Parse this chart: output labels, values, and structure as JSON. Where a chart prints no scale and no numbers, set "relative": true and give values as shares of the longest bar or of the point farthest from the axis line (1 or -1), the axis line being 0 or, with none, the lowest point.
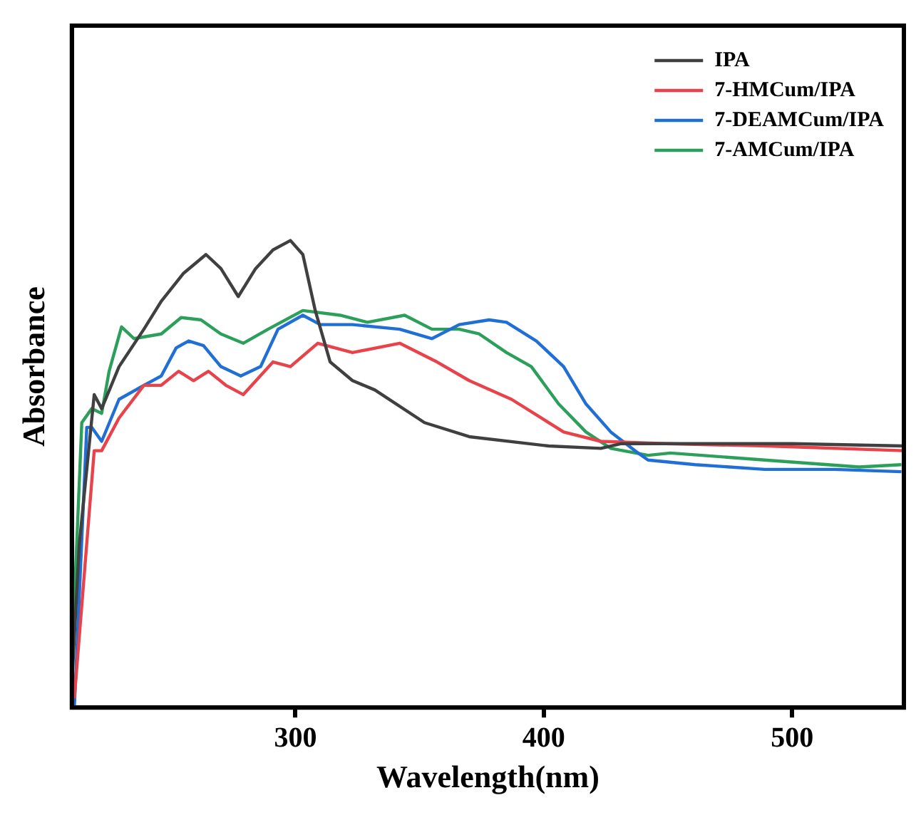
{
  "chart_data": {
    "type": "line",
    "xlabel": "Wavelength(nm)",
    "ylabel": "Absorbance",
    "relative": true,
    "xlim": [
      210,
      545
    ],
    "xticks": [
      300,
      400,
      500
    ],
    "grid": false,
    "legend": "top right",
    "marker": "none",
    "line_style": "solid",
    "series": [
      {
        "name": "IPA",
        "color": "#404040",
        "x": [
          210,
          213,
          219,
          222,
          229,
          239,
          246,
          255,
          264,
          270,
          277,
          284,
          291,
          298,
          303,
          308,
          314,
          323,
          332,
          352,
          370,
          402,
          423,
          431,
          460,
          500,
          545
        ],
        "values": [
          0.05,
          0.35,
          0.67,
          0.64,
          0.73,
          0.81,
          0.87,
          0.93,
          0.97,
          0.94,
          0.88,
          0.94,
          0.98,
          1.0,
          0.97,
          0.85,
          0.74,
          0.7,
          0.68,
          0.61,
          0.58,
          0.56,
          0.555,
          0.565,
          0.565,
          0.565,
          0.56
        ]
      },
      {
        "name": "7-HMCum/IPA",
        "color": "#e8424a",
        "x": [
          211,
          219,
          222,
          229,
          239,
          246,
          253,
          259,
          265,
          272,
          279,
          291,
          298,
          309,
          323,
          342,
          357,
          370,
          387,
          399,
          408,
          423,
          449,
          490,
          545
        ],
        "values": [
          0.02,
          0.55,
          0.55,
          0.62,
          0.69,
          0.69,
          0.72,
          0.7,
          0.72,
          0.69,
          0.67,
          0.74,
          0.73,
          0.78,
          0.76,
          0.78,
          0.74,
          0.7,
          0.66,
          0.62,
          0.59,
          0.57,
          0.565,
          0.56,
          0.55
        ]
      },
      {
        "name": "7-DEAMCum/IPA",
        "color": "#1f6fd6",
        "x": [
          211,
          216,
          218,
          222,
          229,
          239,
          246,
          252,
          257,
          263,
          270,
          278,
          286,
          293,
          303,
          310,
          323,
          342,
          355,
          366,
          378,
          385,
          397,
          408,
          417,
          427,
          438,
          442,
          461,
          489,
          517,
          544
        ],
        "values": [
          0.0,
          0.6,
          0.6,
          0.57,
          0.66,
          0.69,
          0.71,
          0.77,
          0.785,
          0.775,
          0.73,
          0.71,
          0.73,
          0.81,
          0.84,
          0.82,
          0.82,
          0.81,
          0.79,
          0.82,
          0.83,
          0.825,
          0.785,
          0.73,
          0.65,
          0.59,
          0.545,
          0.53,
          0.52,
          0.51,
          0.51,
          0.505
        ]
      },
      {
        "name": "7-AMCum/IPA",
        "color": "#2ca05a",
        "x": [
          210,
          214,
          218,
          222,
          225,
          230,
          235,
          246,
          254,
          262,
          270,
          279,
          289,
          303,
          318,
          329,
          344,
          355,
          366,
          374,
          385,
          395,
          406,
          417,
          427,
          442,
          451,
          489,
          527,
          544
        ],
        "values": [
          0.1,
          0.61,
          0.64,
          0.63,
          0.72,
          0.815,
          0.79,
          0.8,
          0.835,
          0.83,
          0.8,
          0.78,
          0.81,
          0.85,
          0.84,
          0.825,
          0.84,
          0.81,
          0.81,
          0.8,
          0.76,
          0.73,
          0.65,
          0.59,
          0.555,
          0.54,
          0.545,
          0.53,
          0.515,
          0.52
        ]
      }
    ]
  }
}
